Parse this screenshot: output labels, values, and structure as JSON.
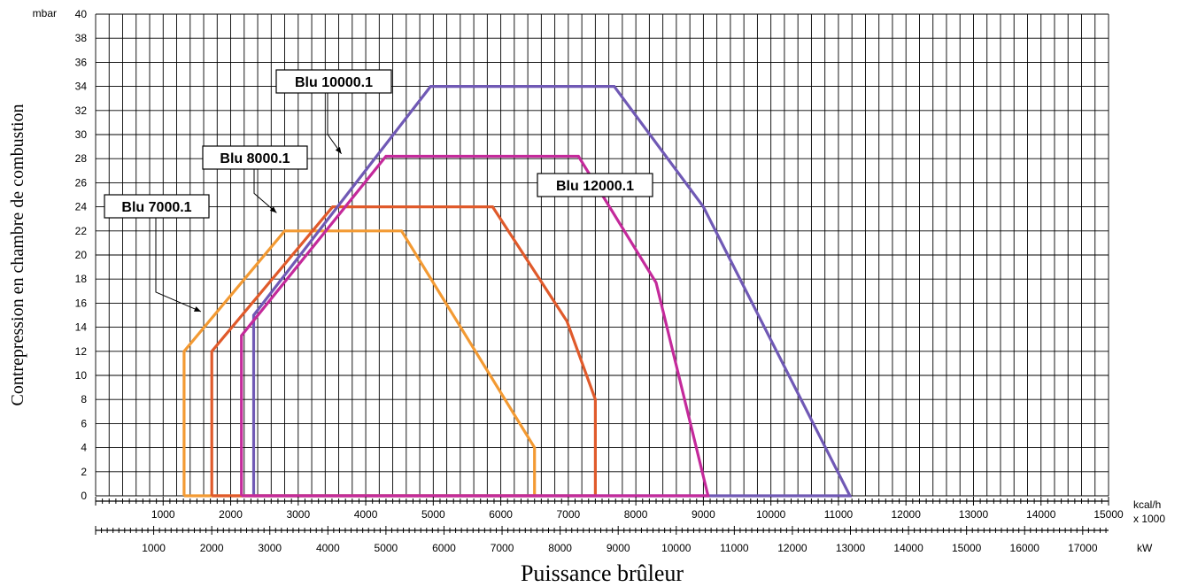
{
  "chart_data": {
    "type": "line",
    "xlabel": "Puissance brûleur",
    "ylabel": "Contrepression en chambre de combustion",
    "y_unit": "mbar",
    "x_unit": "kcal/h",
    "x_unit_multiplier": "x 1000",
    "x2_unit": "kW",
    "xlim": [
      0,
      15000
    ],
    "ylim": [
      0,
      40
    ],
    "y_ticks": [
      0,
      2,
      4,
      6,
      8,
      10,
      12,
      14,
      16,
      18,
      20,
      22,
      24,
      26,
      28,
      30,
      32,
      34,
      36,
      38,
      40
    ],
    "x_ticks": [
      1000,
      2000,
      3000,
      4000,
      5000,
      6000,
      7000,
      8000,
      9000,
      10000,
      11000,
      12000,
      13000,
      14000,
      15000
    ],
    "x2_ticks": [
      1000,
      2000,
      3000,
      4000,
      5000,
      6000,
      7000,
      8000,
      9000,
      10000,
      11000,
      12000,
      13000,
      14000,
      15000,
      16000,
      17000
    ],
    "x2_per_x": 1.163,
    "grid": true,
    "series": [
      {
        "name": "Blu 7000.1",
        "color": "#F39A33",
        "points": [
          [
            1310,
            0
          ],
          [
            1310,
            12
          ],
          [
            2800,
            22
          ],
          [
            4530,
            22
          ],
          [
            6500,
            4
          ],
          [
            6500,
            0
          ],
          [
            1310,
            0
          ]
        ]
      },
      {
        "name": "Blu 8000.1",
        "color": "#E05A2B",
        "points": [
          [
            1720,
            0
          ],
          [
            1720,
            12
          ],
          [
            3510,
            24
          ],
          [
            5880,
            24
          ],
          [
            6980,
            14.5
          ],
          [
            7400,
            8
          ],
          [
            7400,
            0
          ],
          [
            1720,
            0
          ]
        ]
      },
      {
        "name": "Blu 10000.1",
        "color": "#7059B5",
        "points": [
          [
            2340,
            0
          ],
          [
            2340,
            15
          ],
          [
            4960,
            34
          ],
          [
            7680,
            34
          ],
          [
            9000,
            24
          ],
          [
            11170,
            0
          ],
          [
            2340,
            0
          ]
        ]
      },
      {
        "name": "Blu 12000.1",
        "color": "#C42A9B",
        "points": [
          [
            2160,
            0
          ],
          [
            2160,
            13.3
          ],
          [
            4300,
            28.2
          ],
          [
            7150,
            28.2
          ],
          [
            8300,
            17.7
          ],
          [
            9070,
            0
          ],
          [
            2160,
            0
          ]
        ]
      }
    ],
    "labels": [
      {
        "text": "Blu 7000.1",
        "target": [
          1560,
          15.3
        ]
      },
      {
        "text": "Blu 8000.1",
        "target": [
          2680,
          23.5
        ]
      },
      {
        "text": "Blu 10000.1",
        "target": [
          3640,
          28.4
        ]
      },
      {
        "text": "Blu 12000.1",
        "target": null
      }
    ]
  }
}
